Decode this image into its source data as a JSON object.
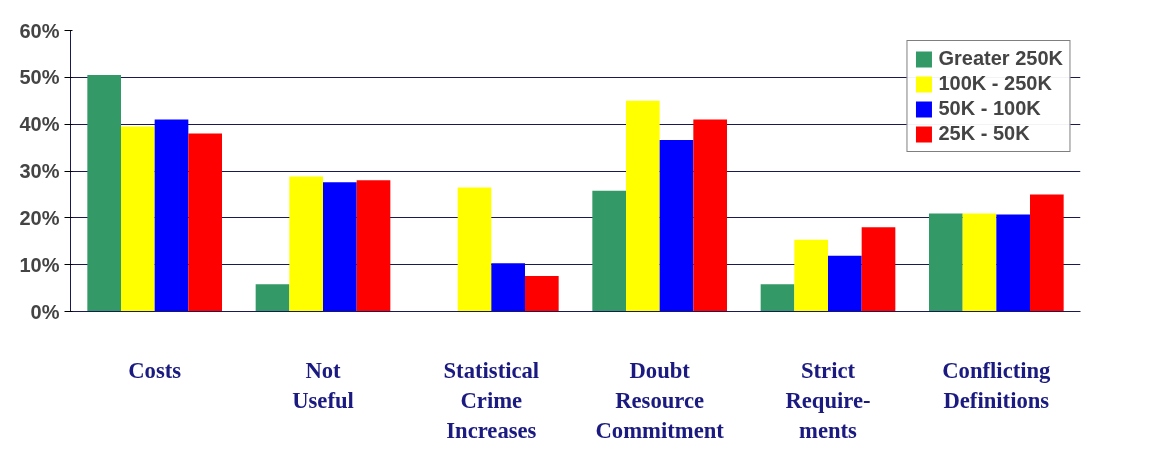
{
  "chart_data": {
    "type": "bar",
    "categories": [
      "Costs",
      "Not\nUseful",
      "Statistical\nCrime\nIncreases",
      "Doubt\nResource\nCommitment",
      "Strict\nRequire-\nments",
      "Conflicting\nDefinitions"
    ],
    "series": [
      {
        "name": "Greater 250K",
        "color": "#339966",
        "values": [
          50.5,
          5.8,
          null,
          25.8,
          5.8,
          20.9
        ]
      },
      {
        "name": "100K - 250K",
        "color": "#ffff00",
        "values": [
          39.5,
          28.8,
          26.5,
          45,
          15.3,
          20.9
        ]
      },
      {
        "name": "50K - 100K",
        "color": "#0000ff",
        "values": [
          41,
          27.6,
          10.3,
          36.6,
          11.9,
          20.7
        ]
      },
      {
        "name": "25K - 50K",
        "color": "#ff0000",
        "values": [
          38,
          28,
          7.6,
          41,
          18,
          25
        ]
      }
    ],
    "ylim": [
      0,
      60
    ],
    "yticks": [
      {
        "value": 0,
        "label": "0%"
      },
      {
        "value": 10,
        "label": "10%"
      },
      {
        "value": 20,
        "label": "20%"
      },
      {
        "value": 30,
        "label": "30%"
      },
      {
        "value": 40,
        "label": "40%"
      },
      {
        "value": 50,
        "label": "50%"
      },
      {
        "value": 60,
        "label": "60%"
      }
    ],
    "grid": "y",
    "legend": "top right"
  }
}
